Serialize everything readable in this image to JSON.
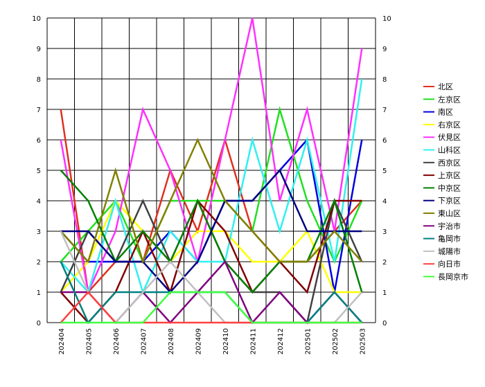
{
  "chart_data": {
    "type": "line",
    "title": "",
    "xlabel": "",
    "ylabel": "",
    "ylim": [
      0,
      10
    ],
    "yticks": [
      0,
      1,
      2,
      3,
      4,
      5,
      6,
      7,
      8,
      9,
      10
    ],
    "grid": true,
    "legend_position": "right",
    "categories": [
      "202404",
      "202405",
      "202406",
      "202407",
      "202408",
      "202409",
      "202410",
      "202411",
      "202412",
      "202501",
      "202502",
      "202503"
    ],
    "series": [
      {
        "name": "北区",
        "color": "#e03020",
        "values": [
          7,
          1,
          2,
          2,
          5,
          3,
          6,
          3,
          2,
          2,
          3,
          4
        ]
      },
      {
        "name": "左京区",
        "color": "#20e020",
        "values": [
          2,
          3,
          4,
          2,
          4,
          4,
          4,
          3,
          7,
          4,
          2,
          4
        ]
      },
      {
        "name": "南区",
        "color": "#0000e0",
        "values": [
          3,
          2,
          2,
          2,
          3,
          2,
          4,
          4,
          5,
          6,
          1,
          6
        ]
      },
      {
        "name": "右京区",
        "color": "#ffff00",
        "values": [
          1,
          2,
          4,
          3,
          2,
          3,
          3,
          2,
          2,
          3,
          1,
          1
        ]
      },
      {
        "name": "伏見区",
        "color": "#ff30ff",
        "values": [
          6,
          1,
          3,
          7,
          5,
          2,
          6,
          10,
          4,
          7,
          3,
          9
        ]
      },
      {
        "name": "山科区",
        "color": "#30f0f0",
        "values": [
          2,
          1,
          4,
          1,
          3,
          2,
          2,
          6,
          3,
          6,
          2,
          8
        ]
      },
      {
        "name": "西京区",
        "color": "#404040",
        "values": [
          1,
          3,
          2,
          4,
          2,
          4,
          2,
          1,
          1,
          0,
          4,
          2
        ]
      },
      {
        "name": "上京区",
        "color": "#800000",
        "values": [
          1,
          0,
          1,
          3,
          1,
          4,
          3,
          1,
          2,
          1,
          4,
          4
        ]
      },
      {
        "name": "中京区",
        "color": "#008000",
        "values": [
          5,
          4,
          2,
          3,
          2,
          4,
          2,
          1,
          2,
          2,
          4,
          1
        ]
      },
      {
        "name": "下京区",
        "color": "#000080",
        "values": [
          3,
          3,
          2,
          2,
          1,
          2,
          4,
          4,
          5,
          3,
          3,
          3
        ]
      },
      {
        "name": "東山区",
        "color": "#808000",
        "values": [
          3,
          2,
          5,
          2,
          4,
          6,
          4,
          3,
          2,
          2,
          3,
          2
        ]
      },
      {
        "name": "宇治市",
        "color": "#800080",
        "values": [
          1,
          1,
          0,
          1,
          0,
          1,
          2,
          0,
          1,
          0,
          1,
          0
        ]
      },
      {
        "name": "亀岡市",
        "color": "#008080",
        "values": [
          2,
          0,
          1,
          1,
          1,
          1,
          1,
          0,
          0,
          0,
          1,
          0
        ]
      },
      {
        "name": "城陽市",
        "color": "#c0c0c0",
        "values": [
          3,
          1,
          0,
          1,
          2,
          1,
          0,
          0,
          0,
          0,
          0,
          1
        ]
      },
      {
        "name": "向日市",
        "color": "#ff4040",
        "values": [
          0,
          1,
          0,
          0,
          0,
          0,
          0,
          0,
          0,
          0,
          0,
          0
        ]
      },
      {
        "name": "長岡京市",
        "color": "#40ff40",
        "values": [
          0,
          0,
          0,
          0,
          1,
          1,
          1,
          0,
          0,
          0,
          0,
          0
        ]
      }
    ]
  }
}
